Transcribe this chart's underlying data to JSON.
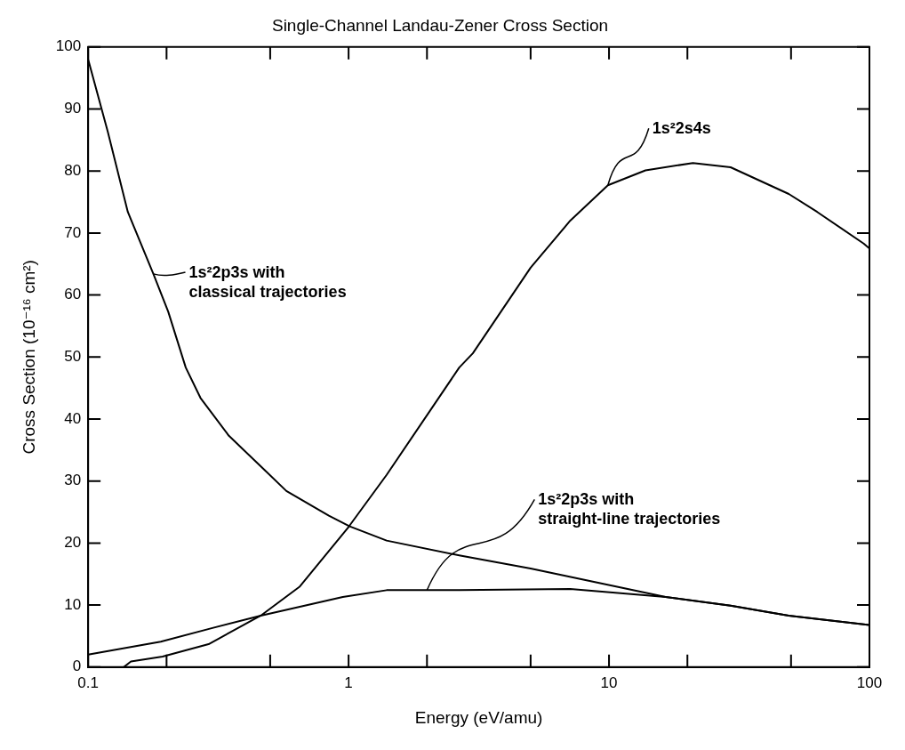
{
  "chart_data": {
    "type": "line",
    "title": "Single-Channel Landau-Zener Cross Section",
    "xlabel": "Energy (eV/amu)",
    "ylabel": "Cross Section (10⁻¹⁶ cm²)",
    "log": "x",
    "grid": false,
    "legend": false,
    "marker": "none",
    "line_style": "solid",
    "xlim": [
      0.1,
      100
    ],
    "xticks": [
      0.1,
      {
        "value": 0.2,
        "label": null
      },
      {
        "value": 0.5,
        "label": null
      },
      1,
      {
        "value": 2,
        "label": null
      },
      {
        "value": 5,
        "label": null
      },
      10,
      {
        "value": 20,
        "label": null
      },
      {
        "value": 50,
        "label": null
      },
      100
    ],
    "ylim": [
      0,
      100
    ],
    "yticks": [
      0,
      10,
      20,
      30,
      40,
      50,
      60,
      70,
      80,
      90,
      100
    ],
    "series": [
      {
        "color": "#000000",
        "x": [
          0.1,
          0.119,
          0.142,
          0.178,
          0.203,
          0.237,
          0.27,
          0.347,
          0.47,
          0.577,
          0.84,
          1.01,
          1.4,
          2.66,
          5,
          16.5,
          29.3,
          49,
          100
        ],
        "values": [
          98,
          86.3,
          73.4,
          63.4,
          57.3,
          48.3,
          43.4,
          37.3,
          32,
          28.4,
          24.4,
          22.7,
          20.4,
          18,
          15.9,
          11.3,
          9.9,
          8.3,
          6.8
        ]
      },
      {
        "color": "#000000",
        "x": [
          0.137,
          0.146,
          0.193,
          0.29,
          0.46,
          0.65,
          1,
          1.4,
          2.66,
          3,
          5,
          7.1,
          9.9,
          13.8,
          21,
          29.3,
          49,
          63,
          95,
          100
        ],
        "values": [
          0,
          0.9,
          1.7,
          3.7,
          8.3,
          13,
          22.6,
          31,
          48.3,
          50.6,
          64.4,
          72,
          77.7,
          80.1,
          81.3,
          80.6,
          76.3,
          73.4,
          68.3,
          67.5
        ]
      },
      {
        "color": "#000000",
        "x": [
          0.1,
          0.19,
          0.3,
          0.46,
          0.95,
          1.4,
          2.66,
          7.1,
          16.5,
          29.3,
          49,
          100
        ],
        "values": [
          2,
          4.1,
          6.3,
          8.3,
          11.3,
          12.4,
          12.4,
          12.6,
          11.3,
          9.9,
          8.3,
          6.8
        ]
      }
    ],
    "annotations": [
      {
        "text": "1s²2p3s with\nclassical trajectories",
        "x": 0.178,
        "y": 63.4
      },
      {
        "text": "1s²2s4s",
        "x": 9.9,
        "y": 77.7
      },
      {
        "text": "1s²2p3s with\nstraight-line trajectories",
        "x": 2,
        "y": 12.4
      }
    ]
  }
}
